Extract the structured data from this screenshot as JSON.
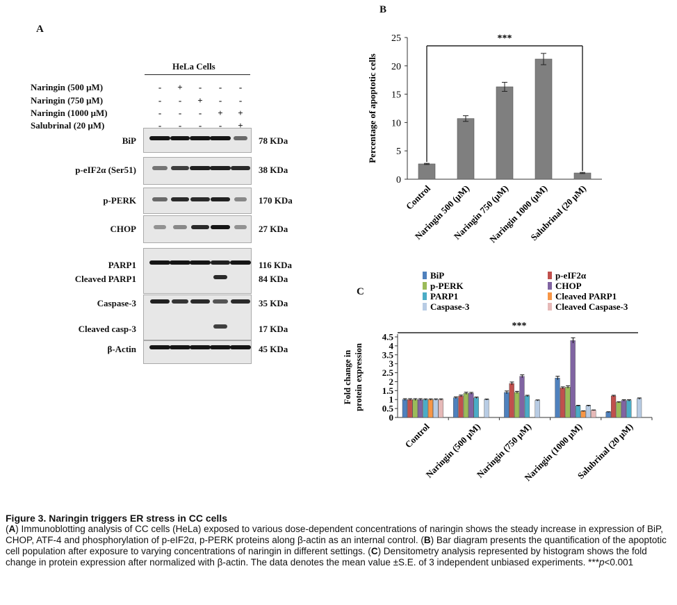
{
  "panel_a": {
    "letter": "A",
    "cell_line": "HeLa Cells",
    "treatments": [
      {
        "label": "Naringin  (500 μM)",
        "signs": [
          "-",
          "+",
          "-",
          "-",
          "-"
        ]
      },
      {
        "label": "Naringin  (750 μM)",
        "signs": [
          "-",
          "-",
          "+",
          "-",
          "-"
        ]
      },
      {
        "label": "Naringin  (1000 μM)",
        "signs": [
          "-",
          "-",
          "-",
          "+",
          "+"
        ]
      },
      {
        "label": "Salubrinal  (20 μM)",
        "signs": [
          "-",
          "-",
          "-",
          "-",
          "+"
        ]
      }
    ],
    "blots": [
      {
        "label": "BiP",
        "kda": "78 KDa"
      },
      {
        "label": "p-eIF2α (Ser51)",
        "kda": "38 KDa"
      },
      {
        "label": "p-PERK",
        "kda": "170 KDa"
      },
      {
        "label": "CHOP",
        "kda": "27 KDa"
      },
      {
        "label": "PARP1",
        "kda": "116 KDa"
      },
      {
        "label": "Cleaved PARP1",
        "kda": "84 KDa"
      },
      {
        "label": "Caspase-3",
        "kda": "35 KDa"
      },
      {
        "label": "Cleaved casp-3",
        "kda": "17 KDa"
      },
      {
        "label": "β-Actin",
        "kda": "45 KDa"
      }
    ]
  },
  "chart_data": [
    {
      "panel": "B",
      "type": "bar",
      "ylabel": "Percentage of apoptotic cells",
      "categories": [
        "Control",
        "Naringin 500 (μM)",
        "Naringin 750 (μM)",
        "Naringin 1000 (μM)",
        "Salubrinal (20 μM)"
      ],
      "values": [
        2.7,
        10.7,
        16.3,
        21.2,
        1.1
      ],
      "errors": [
        0.1,
        0.5,
        0.8,
        1.0,
        0.1
      ],
      "ylim": [
        0,
        25
      ],
      "yticks": [
        "0",
        "5",
        "10",
        "15",
        "20",
        "25"
      ],
      "significance": "***",
      "bar_color": "#7f7f7f"
    },
    {
      "panel": "C",
      "type": "bar",
      "ylabel": "Fold change in protein expression",
      "categories": [
        "Control",
        "Naringin (500 μM)",
        "Naringin (750 μM)",
        "Naringin (1000 μM)",
        "Salubrinal (20 μM)"
      ],
      "ylim": [
        0,
        4.5
      ],
      "yticks": [
        "0",
        "0.5",
        "1",
        "1.5",
        "2",
        "2.5",
        "3",
        "3.5",
        "4",
        "4.5"
      ],
      "significance": "***",
      "legend_position": "top",
      "series": [
        {
          "name": "BiP",
          "color": "#4f81bd",
          "values": [
            1.0,
            1.1,
            1.4,
            2.2,
            0.3
          ],
          "errors": [
            0.05,
            0.05,
            0.08,
            0.1,
            0.02
          ]
        },
        {
          "name": "p-eIF2α",
          "color": "#c0504d",
          "values": [
            1.0,
            1.2,
            1.9,
            1.65,
            1.2
          ],
          "errors": [
            0.05,
            0.05,
            0.08,
            0.06,
            0.04
          ]
        },
        {
          "name": "p-PERK",
          "color": "#9bbb59",
          "values": [
            1.0,
            1.35,
            1.4,
            1.7,
            0.85
          ],
          "errors": [
            0.05,
            0.06,
            0.06,
            0.07,
            0.03
          ]
        },
        {
          "name": "CHOP",
          "color": "#8064a2",
          "values": [
            1.0,
            1.35,
            2.3,
            4.3,
            0.95
          ],
          "errors": [
            0.05,
            0.05,
            0.08,
            0.15,
            0.04
          ]
        },
        {
          "name": "PARP1",
          "color": "#4bacc6",
          "values": [
            1.0,
            1.1,
            1.2,
            0.65,
            0.95
          ],
          "errors": [
            0.04,
            0.04,
            0.04,
            0.03,
            0.04
          ]
        },
        {
          "name": "Cleaved PARP1",
          "color": "#f79646",
          "values": [
            1.0,
            0,
            0,
            0.35,
            0
          ],
          "errors": [
            0.04,
            0,
            0,
            0.02,
            0
          ]
        },
        {
          "name": "Caspase-3",
          "color": "#b8cce4",
          "values": [
            1.0,
            1.0,
            0.95,
            0.65,
            1.05
          ],
          "errors": [
            0.04,
            0.03,
            0.03,
            0.03,
            0.04
          ]
        },
        {
          "name": "Cleaved Caspase-3",
          "color": "#e6b9b8",
          "values": [
            1.0,
            0,
            0,
            0.4,
            0
          ],
          "errors": [
            0.04,
            0,
            0,
            0.02,
            0
          ]
        }
      ]
    }
  ],
  "panel_b_letter": "B",
  "panel_c_letter": "C",
  "caption": {
    "title": "Figure 3. Naringin triggers ER stress in CC cells",
    "a_tag": "A",
    "a_text": ") Immunoblotting analysis of CC cells (HeLa) exposed to various dose-dependent concentrations of naringin shows the steady increase in expression of BiP, CHOP, ATF-4 and phosphorylation of p-eIF2α, p-PERK proteins along β-actin as an internal control. (",
    "b_tag": "B",
    "b_text": ") Bar diagram presents the quantification of the apoptotic cell population after exposure to varying concentrations of naringin in different settings. (",
    "c_tag": "C",
    "c_text": ") Densitometry analysis represented by histogram shows the fold change in protein expression after normalized with β-actin. The data denotes the mean value ±S.E. of 3 independent unbiased experiments. ***",
    "p_sym": "p",
    "p_val": "<0.001"
  }
}
